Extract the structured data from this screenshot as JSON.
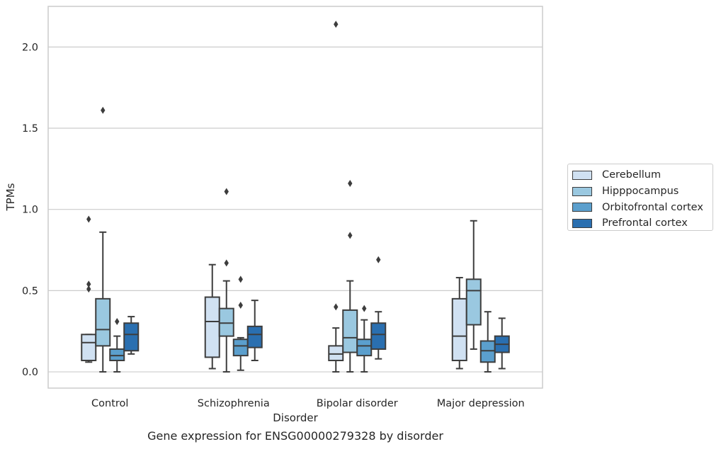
{
  "caption": "Gene expression for ENSG00000279328 by disorder",
  "chart_data": {
    "type": "box",
    "title": "",
    "xlabel": "Disorder",
    "ylabel": "TPMs",
    "ylim": [
      -0.1,
      2.25
    ],
    "yticks": [
      0.0,
      0.5,
      1.0,
      1.5,
      2.0
    ],
    "ytick_labels": [
      "0.0",
      "0.5",
      "1.0",
      "1.5",
      "2.0"
    ],
    "grid": "horizontal",
    "legend_position": "right",
    "categories": [
      "Control",
      "Schizophrenia",
      "Bipolar disorder",
      "Major depression"
    ],
    "series": [
      {
        "name": "Cerebellum",
        "color": "#d0e1f2",
        "boxes": [
          {
            "whisker_low": 0.06,
            "q1": 0.07,
            "median": 0.18,
            "q3": 0.23,
            "whisker_high": 0.23,
            "outliers": [
              0.51,
              0.54,
              0.94
            ]
          },
          {
            "whisker_low": 0.02,
            "q1": 0.09,
            "median": 0.31,
            "q3": 0.46,
            "whisker_high": 0.66,
            "outliers": []
          },
          {
            "whisker_low": 0.0,
            "q1": 0.07,
            "median": 0.11,
            "q3": 0.16,
            "whisker_high": 0.27,
            "outliers": [
              0.4,
              2.14
            ]
          },
          {
            "whisker_low": 0.02,
            "q1": 0.07,
            "median": 0.22,
            "q3": 0.45,
            "whisker_high": 0.58,
            "outliers": []
          }
        ]
      },
      {
        "name": "Hipppocampus",
        "color": "#9ac8e0",
        "boxes": [
          {
            "whisker_low": 0.0,
            "q1": 0.16,
            "median": 0.26,
            "q3": 0.45,
            "whisker_high": 0.86,
            "outliers": [
              1.61
            ]
          },
          {
            "whisker_low": 0.0,
            "q1": 0.22,
            "median": 0.3,
            "q3": 0.39,
            "whisker_high": 0.56,
            "outliers": [
              0.67,
              1.11
            ]
          },
          {
            "whisker_low": 0.0,
            "q1": 0.12,
            "median": 0.21,
            "q3": 0.38,
            "whisker_high": 0.56,
            "outliers": [
              0.84,
              1.16
            ]
          },
          {
            "whisker_low": 0.14,
            "q1": 0.29,
            "median": 0.5,
            "q3": 0.57,
            "whisker_high": 0.93,
            "outliers": []
          }
        ]
      },
      {
        "name": "Orbitofrontal cortex",
        "color": "#5b9fcd",
        "boxes": [
          {
            "whisker_low": 0.0,
            "q1": 0.07,
            "median": 0.1,
            "q3": 0.14,
            "whisker_high": 0.22,
            "outliers": [
              0.31
            ]
          },
          {
            "whisker_low": 0.01,
            "q1": 0.1,
            "median": 0.16,
            "q3": 0.2,
            "whisker_high": 0.21,
            "outliers": [
              0.41,
              0.57
            ]
          },
          {
            "whisker_low": 0.0,
            "q1": 0.1,
            "median": 0.16,
            "q3": 0.2,
            "whisker_high": 0.32,
            "outliers": [
              0.39
            ]
          },
          {
            "whisker_low": 0.0,
            "q1": 0.06,
            "median": 0.13,
            "q3": 0.19,
            "whisker_high": 0.37,
            "outliers": []
          }
        ]
      },
      {
        "name": "Prefrontal cortex",
        "color": "#2a6fb0",
        "boxes": [
          {
            "whisker_low": 0.11,
            "q1": 0.13,
            "median": 0.23,
            "q3": 0.3,
            "whisker_high": 0.34,
            "outliers": []
          },
          {
            "whisker_low": 0.07,
            "q1": 0.15,
            "median": 0.23,
            "q3": 0.28,
            "whisker_high": 0.44,
            "outliers": []
          },
          {
            "whisker_low": 0.08,
            "q1": 0.14,
            "median": 0.23,
            "q3": 0.3,
            "whisker_high": 0.37,
            "outliers": [
              0.69
            ]
          },
          {
            "whisker_low": 0.02,
            "q1": 0.12,
            "median": 0.17,
            "q3": 0.22,
            "whisker_high": 0.33,
            "outliers": []
          }
        ]
      }
    ]
  }
}
